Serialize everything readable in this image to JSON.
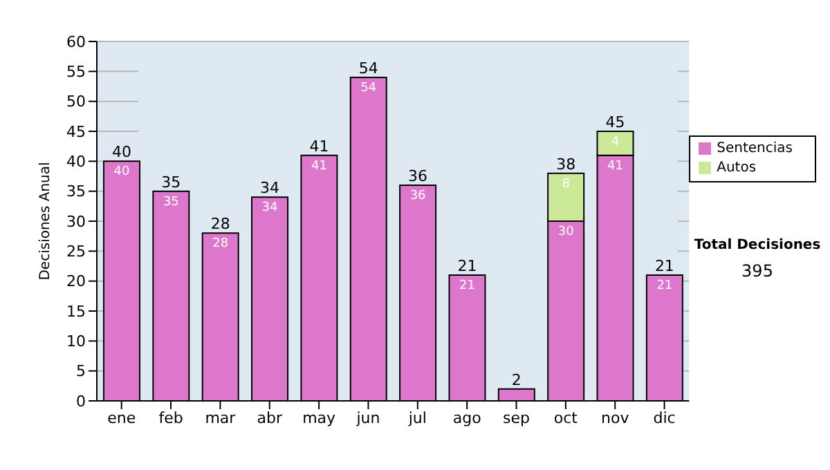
{
  "chart_data": {
    "type": "bar",
    "stacked": true,
    "ylabel": "Decisiones Anual",
    "categories": [
      "ene",
      "feb",
      "mar",
      "abr",
      "may",
      "jun",
      "jul",
      "ago",
      "sep",
      "oct",
      "nov",
      "dic"
    ],
    "series": [
      {
        "name": "Sentencias",
        "color": "#dd77cc",
        "values": [
          40,
          35,
          28,
          34,
          41,
          54,
          36,
          21,
          2,
          30,
          41,
          21
        ],
        "value_labels": [
          "40",
          "35",
          "28",
          "34",
          "41",
          "54",
          "36",
          "21",
          null,
          "30",
          "41",
          "21"
        ]
      },
      {
        "name": "Autos",
        "color": "#cce899",
        "values": [
          null,
          null,
          null,
          null,
          null,
          null,
          null,
          null,
          null,
          8,
          4,
          null
        ],
        "value_labels": [
          null,
          null,
          null,
          null,
          null,
          null,
          null,
          null,
          null,
          "8",
          "4",
          null
        ]
      }
    ],
    "totals": [
      "40",
      "35",
      "28",
      "34",
      "41",
      "54",
      "36",
      "21",
      "2",
      "38",
      "45",
      "21"
    ],
    "ylim": [
      0,
      60
    ],
    "yticks": [
      0,
      5,
      10,
      15,
      20,
      25,
      30,
      35,
      40,
      45,
      50,
      55,
      60
    ],
    "grid": "y",
    "legend": "right",
    "annotations": [
      "Total Decisiones",
      "395"
    ]
  }
}
